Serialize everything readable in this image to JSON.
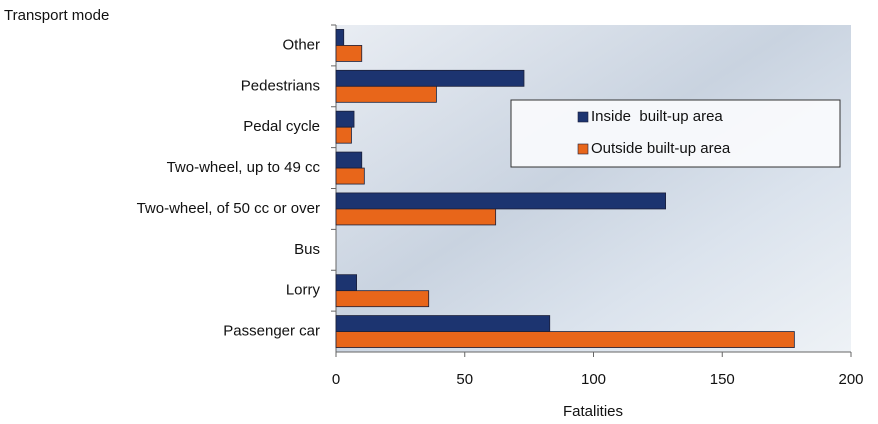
{
  "chart_data": {
    "type": "hbar",
    "y_axis_label": "Transport mode",
    "x_axis_label": "Fatalities",
    "categories": [
      "Other",
      "Pedestrians",
      "Pedal cycle",
      "Two-wheel, up to 49 cc",
      "Two-wheel, of 50 cc or over",
      "Bus",
      "Lorry",
      "Passenger car"
    ],
    "series": [
      {
        "name": "Inside  built-up area",
        "color": "#1c3470",
        "values": [
          3,
          73,
          7,
          10,
          128,
          0,
          8,
          83
        ]
      },
      {
        "name": "Outside built-up area",
        "color": "#e8661a",
        "values": [
          10,
          39,
          6,
          11,
          62,
          0,
          36,
          178
        ]
      }
    ],
    "xlim": [
      0,
      200
    ],
    "xticks": [
      0,
      50,
      100,
      150,
      200
    ]
  }
}
